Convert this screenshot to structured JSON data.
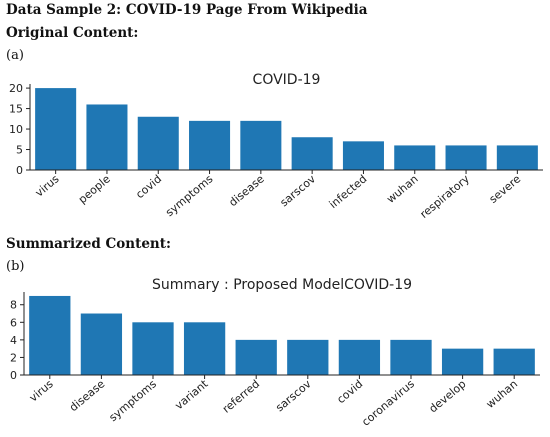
{
  "header": {
    "title": "Data Sample 2: COVID-19 Page From Wikipedia",
    "original_label": "Original Content:",
    "panel_a": "(a)",
    "summarized_label": "Summarized Content:",
    "panel_b": "(b)"
  },
  "colors": {
    "bar": "#1f77b4",
    "axis": "#222222"
  },
  "chart_data": [
    {
      "type": "bar",
      "title": "COVID-19",
      "categories": [
        "virus",
        "people",
        "covid",
        "symptoms",
        "disease",
        "sarscov",
        "infected",
        "wuhan",
        "respiratory",
        "severe"
      ],
      "values": [
        20,
        16,
        13,
        12,
        12,
        8,
        7,
        6,
        6,
        6
      ],
      "yticks": [
        0,
        5,
        10,
        15,
        20
      ],
      "ylim": [
        0,
        21
      ],
      "xlabel": "",
      "ylabel": "",
      "grid": false
    },
    {
      "type": "bar",
      "title": "Summary : Proposed ModelCOVID-19",
      "categories": [
        "virus",
        "disease",
        "symptoms",
        "variant",
        "referred",
        "sarscov",
        "covid",
        "coronavirus",
        "develop",
        "wuhan"
      ],
      "values": [
        9,
        7,
        6,
        6,
        4,
        4,
        4,
        4,
        3,
        3
      ],
      "yticks": [
        0,
        2,
        4,
        6,
        8
      ],
      "ylim": [
        0,
        9.45
      ],
      "xlabel": "",
      "ylabel": "",
      "grid": false
    }
  ]
}
